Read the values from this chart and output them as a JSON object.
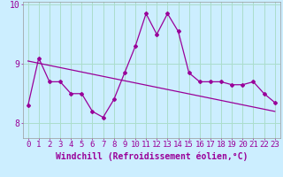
{
  "x": [
    0,
    1,
    2,
    3,
    4,
    5,
    6,
    7,
    8,
    9,
    10,
    11,
    12,
    13,
    14,
    15,
    16,
    17,
    18,
    19,
    20,
    21,
    22,
    23
  ],
  "windchill": [
    8.3,
    9.1,
    8.7,
    8.7,
    8.5,
    8.5,
    8.2,
    8.1,
    8.4,
    8.85,
    9.3,
    9.85,
    9.5,
    9.85,
    9.55,
    8.85,
    8.7,
    8.7,
    8.7,
    8.65,
    8.65,
    8.7,
    8.5,
    8.35
  ],
  "trend_start": 9.05,
  "trend_end": 8.2,
  "line_color": "#990099",
  "bg_color": "#cceeff",
  "grid_color": "#aaddcc",
  "xlabel": "Windchill (Refroidissement éolien,°C)",
  "ylim_min": 7.75,
  "ylim_max": 10.05,
  "xlim_min": -0.5,
  "xlim_max": 23.5,
  "yticks": [
    8,
    9,
    10
  ],
  "xticks": [
    0,
    1,
    2,
    3,
    4,
    5,
    6,
    7,
    8,
    9,
    10,
    11,
    12,
    13,
    14,
    15,
    16,
    17,
    18,
    19,
    20,
    21,
    22,
    23
  ],
  "tick_font_size": 6.5,
  "label_font_size": 7
}
